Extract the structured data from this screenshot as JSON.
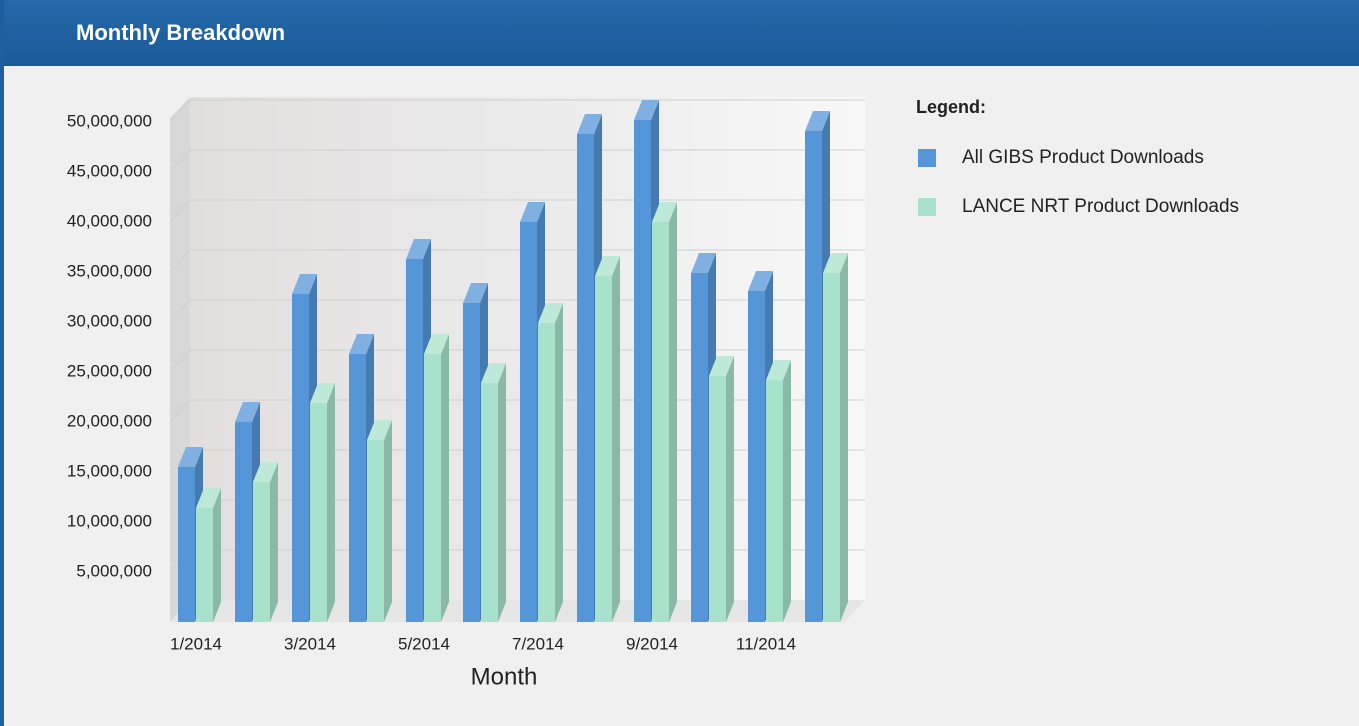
{
  "header": {
    "title": "Monthly Breakdown"
  },
  "chart_data": {
    "type": "bar3d",
    "categories": [
      "1/2014",
      null,
      "3/2014",
      null,
      "5/2014",
      null,
      "7/2014",
      null,
      "9/2014",
      null,
      "11/2014",
      null
    ],
    "series": [
      {
        "name": "All GIBS Product Downloads",
        "color": "#5596d8",
        "values": [
          15500000,
          20000000,
          32800000,
          26800000,
          36300000,
          31900000,
          40000000,
          48800000,
          50200000,
          34900000,
          33100000,
          49100000
        ]
      },
      {
        "name": "LANCE NRT Product Downloads",
        "color": "#a8e2cc",
        "values": [
          11400000,
          14000000,
          21900000,
          18200000,
          26800000,
          23900000,
          29900000,
          34600000,
          40000000,
          24600000,
          24200000,
          34900000
        ]
      }
    ],
    "x_label": "Month",
    "legend_title": "Legend:",
    "ylim": [
      0,
      52500000
    ],
    "yticks": [
      {
        "value": 5000000,
        "label": "5,000,000"
      },
      {
        "value": 10000000,
        "label": "10,000,000"
      },
      {
        "value": 15000000,
        "label": "15,000,000"
      },
      {
        "value": 20000000,
        "label": "20,000,000"
      },
      {
        "value": 25000000,
        "label": "25,000,000"
      },
      {
        "value": 30000000,
        "label": "30,000,000"
      },
      {
        "value": 35000000,
        "label": "35,000,000"
      },
      {
        "value": 40000000,
        "label": "40,000,000"
      },
      {
        "value": 45000000,
        "label": "45,000,000"
      },
      {
        "value": 50000000,
        "label": "50,000,000"
      }
    ],
    "grid": true,
    "legend": "right"
  }
}
